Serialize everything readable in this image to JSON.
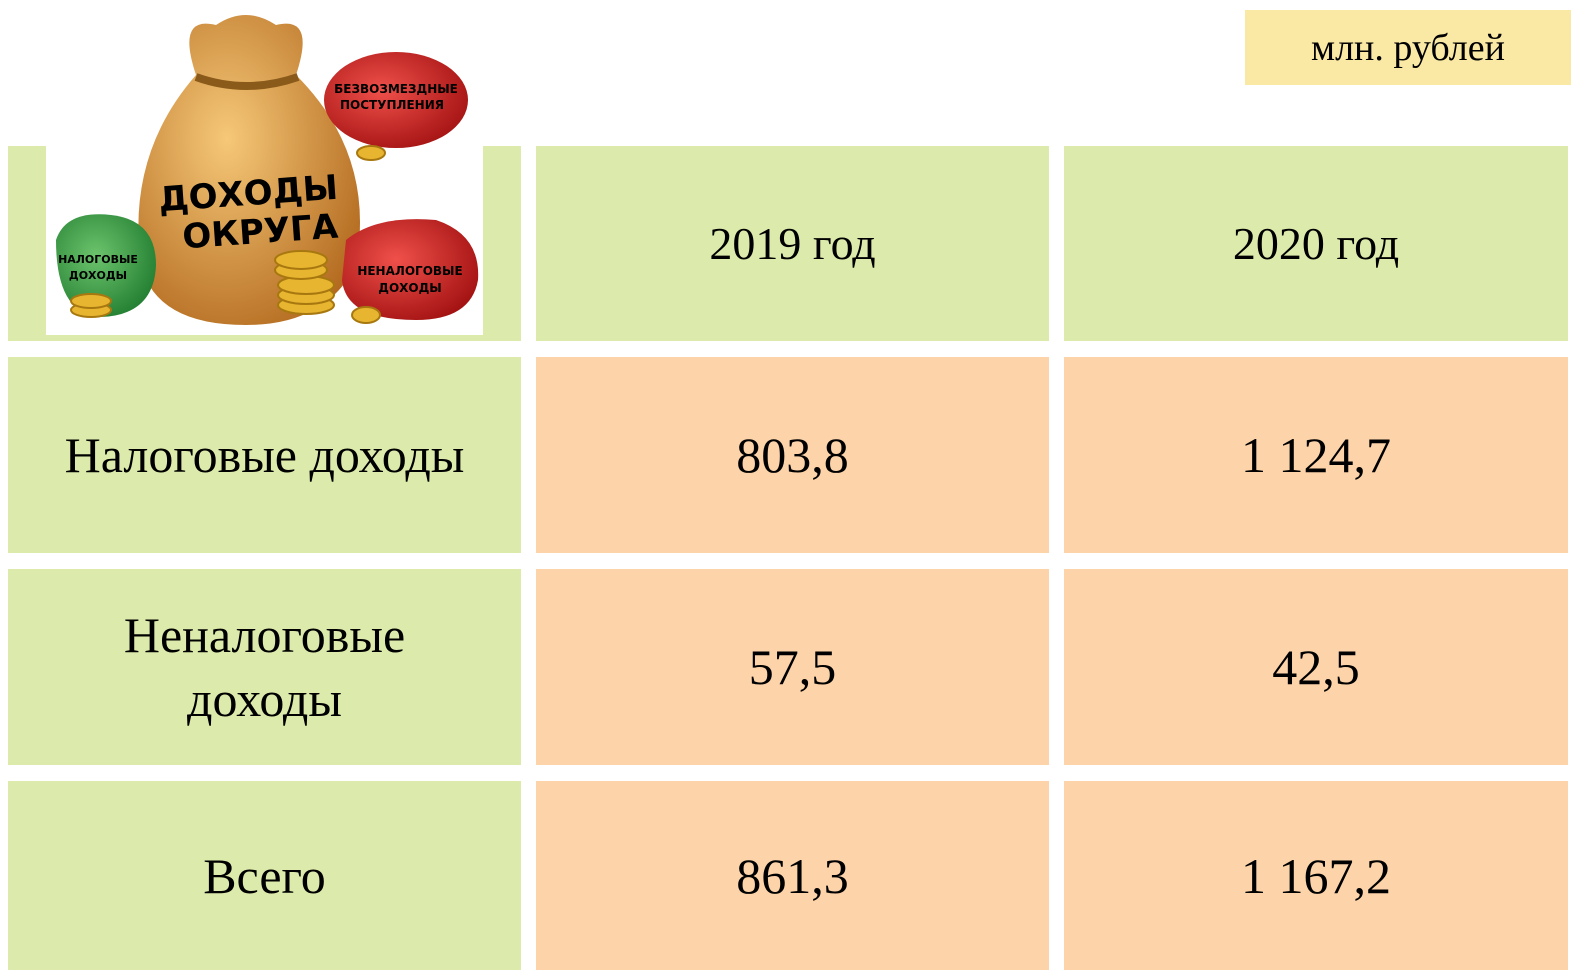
{
  "unit": "млн. рублей",
  "illustration": {
    "title": [
      "ДОХОДЫ",
      "ОКРУГА"
    ],
    "gratuitous": [
      "БЕЗВОЗМЕЗДНЫЕ",
      "ПОСТУПЛЕНИЯ"
    ],
    "tax": [
      "НАЛОГОВЫЕ",
      "ДОХОДЫ"
    ],
    "nontax": [
      "НЕНАЛОГОВЫЕ",
      "ДОХОДЫ"
    ]
  },
  "table": {
    "header": [
      "2019 год",
      "2020 год"
    ],
    "rows": [
      [
        "Налоговые доходы",
        "803,8",
        "1 124,7"
      ],
      [
        "Неналоговые доходы",
        "57,5",
        "42,5"
      ],
      [
        "Всего",
        "861,3",
        "1 167,2"
      ]
    ]
  }
}
